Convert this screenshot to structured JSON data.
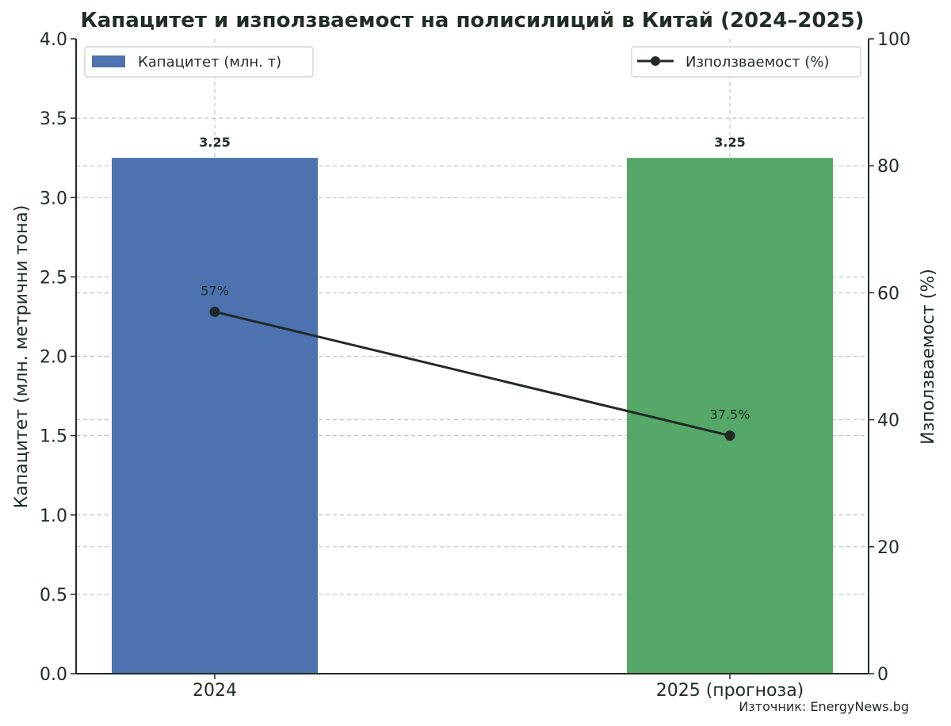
{
  "chart_data": {
    "type": "bar",
    "title": "Капацитет и използваемост на полисилиций в Китай (2024–2025)",
    "categories": [
      "2024",
      "2025 (прогноза)"
    ],
    "bars": {
      "name": "Капацитет (млн. т)",
      "values": [
        3.25,
        3.25
      ],
      "value_labels": [
        "3.25",
        "3.25"
      ],
      "colors": [
        "#4c72b0",
        "#55a868"
      ]
    },
    "line": {
      "name": "Използваемост (%)",
      "values": [
        57,
        37.5
      ],
      "value_labels": [
        "57%",
        "37.5%"
      ],
      "color": "#222a26"
    },
    "ylabel_left": "Капацитет (млн. метрични тона)",
    "ylabel_right": "Използваемост (%)",
    "ylim_left": [
      0,
      4.0
    ],
    "ylim_right": [
      0,
      100
    ],
    "yticks_left": [
      "0.0",
      "0.5",
      "1.0",
      "1.5",
      "2.0",
      "2.5",
      "3.0",
      "3.5",
      "4.0"
    ],
    "yticks_right": [
      "0",
      "20",
      "40",
      "60",
      "80",
      "100"
    ],
    "grid": true,
    "legend_bars_position": "top-left",
    "legend_line_position": "top-right",
    "source": "Източник: EnergyNews.bg"
  }
}
